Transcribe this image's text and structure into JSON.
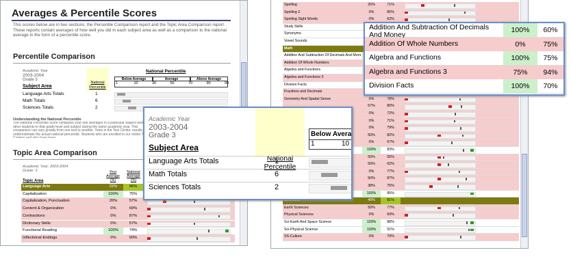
{
  "left": {
    "title": "Averages & Percentile Scores",
    "intro": "This scores below are in two sections, the Percentile Comparison report and the Topic Area Comparison report. These reports contain averages of how well you did in each subject area as well as a comparison to the national average in the form of a percentile score.",
    "percentile": {
      "heading": "Percentile Comparison",
      "year_label": "Academic Year",
      "year": "2003-2004",
      "grade": "Grade 3",
      "subject_header": "Subject Area",
      "national_header": "National Percentile",
      "scale_title": "National Percentile",
      "groups": [
        "Below Average",
        "Average",
        "Above Average"
      ],
      "scale": [
        "1",
        "10",
        "30",
        "50",
        "70",
        "90",
        "99"
      ],
      "rows": [
        {
          "subject": "Language Arts Totals",
          "percentile": "1"
        },
        {
          "subject": "Math Totals",
          "percentile": "6"
        },
        {
          "subject": "Sciences Totals",
          "percentile": "2"
        }
      ]
    },
    "understanding": {
      "title": "Understanding the National Percentile",
      "text": "The National Percentile score compares your test averages in a particular subject with other students in that grade level and subject during the same academic year. This comparison can vary greatly from one test to another. Tests in the Test Center, results can underestimate the actual national percentile. Students who are enrolled in our online Test Centers and who have been"
    },
    "topic": {
      "heading": "Topic Area Comparison",
      "year": "Academic Year: 2003-2004",
      "grade": "Grade: 3",
      "topic_header": "Topic Area",
      "your_header": "Your Average (%)",
      "national_header": "National Average (%)",
      "rows": [
        {
          "topic": "Language Arts",
          "your": "22%",
          "national": "66%",
          "category": true
        },
        {
          "topic": "Capitalization",
          "your": "100%",
          "national": "75%"
        },
        {
          "topic": "Capitalization, Punctuation",
          "your": "20%",
          "national": "57%"
        },
        {
          "topic": "Content & Organization",
          "your": "0%",
          "national": "69%"
        },
        {
          "topic": "Contractions",
          "your": "0%",
          "national": "87%"
        },
        {
          "topic": "Dictionary Skills",
          "your": "0%",
          "national": "57%"
        },
        {
          "topic": "Functional Reading",
          "your": "100%",
          "national": "74%"
        },
        {
          "topic": "Inflectional Endings",
          "your": "0%",
          "national": "60%"
        }
      ]
    }
  },
  "right": {
    "rows": [
      {
        "topic": "Spelling",
        "your": "25%",
        "national": "71%"
      },
      {
        "topic": "Spelling 2",
        "your": "0%",
        "national": "85%"
      },
      {
        "topic": "Spelling Sight Words",
        "your": "0%",
        "national": "63%"
      },
      {
        "topic": "Study Skills"
      },
      {
        "topic": "Synonyms"
      },
      {
        "topic": "Vowel Sounds"
      },
      {
        "topic": "Math",
        "category": true
      },
      {
        "topic": "Addition And Subtraction Of Decimals And Money",
        "your": "100%",
        "national": "60%",
        "zoom": true
      },
      {
        "topic": "Addition Of Whole Numbers",
        "your": "0%",
        "national": "75%",
        "zoom": true
      },
      {
        "topic": "Algebra and Functions",
        "your": "100%",
        "national": "75%",
        "zoom": true
      },
      {
        "topic": "Algebra and Functions 3",
        "your": "75%",
        "national": "94%",
        "zoom": true
      },
      {
        "topic": "Division Facts",
        "your": "100%",
        "national": "70%",
        "zoom": true
      },
      {
        "topic": "Fractions and Decimals",
        "your": "0%",
        "national": "79%"
      },
      {
        "topic": "Geometry And Spatial Sense",
        "your": "0%",
        "national": "78%"
      },
      {
        "your": "67%",
        "national": "80%"
      },
      {
        "your": "0%",
        "national": "72%"
      },
      {
        "your": "0%",
        "national": "71%"
      },
      {
        "your": "0%",
        "national": "79%"
      },
      {
        "your": "50%",
        "national": "82%"
      },
      {
        "your": "0%",
        "national": "67%"
      },
      {
        "your": "100%",
        "national": "83%"
      },
      {
        "your": "50%",
        "national": "55%"
      },
      {
        "your": "50%",
        "national": "62%"
      },
      {
        "your": "0%",
        "national": "77%"
      },
      {
        "your": "50%",
        "national": "87%"
      },
      {
        "your": "38%",
        "national": "75%"
      },
      {
        "topic": "- Operations",
        "your": "100%",
        "national": "95%"
      },
      {
        "topic": "Sciences",
        "your": "40%",
        "national": "81%",
        "category": true
      },
      {
        "topic": "Earth Sciences",
        "your": "50%",
        "national": "77%"
      },
      {
        "topic": "Physical Sciences",
        "your": "0%",
        "national": "69%"
      },
      {
        "topic": "Sci-Earth And Space Science",
        "your": "100%",
        "national": "88%"
      },
      {
        "topic": "Sci-Physical Science",
        "your": "100%",
        "national": "91%"
      },
      {
        "topic": "SS-Culture",
        "your": "0%",
        "national": "79%"
      }
    ]
  }
}
